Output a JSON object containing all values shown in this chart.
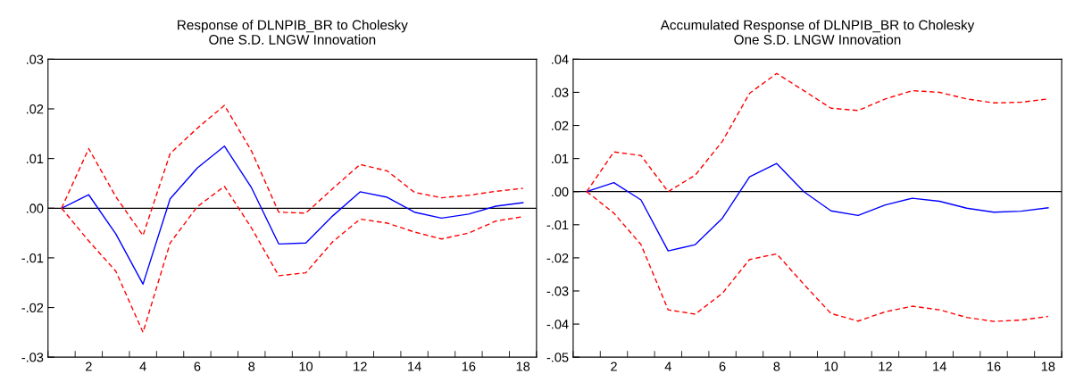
{
  "chart_data": [
    {
      "type": "line",
      "title": "Response of DLNPIB_BR to Cholesky\nOne S.D. LNGW Innovation",
      "categories": [
        null,
        "2",
        null,
        "4",
        null,
        "6",
        null,
        "8",
        null,
        "10",
        null,
        "12",
        null,
        "14",
        null,
        "16",
        null,
        "18"
      ],
      "ylim": [
        -0.03,
        0.03
      ],
      "yticks": [
        {
          "value": -0.03,
          "label": "-.03"
        },
        {
          "value": -0.02,
          "label": "-.02"
        },
        {
          "value": -0.01,
          "label": "-.01"
        },
        {
          "value": 0,
          "label": ".00"
        },
        {
          "value": 0.01,
          "label": ".01"
        },
        {
          "value": 0.02,
          "label": ".02"
        },
        {
          "value": 0.03,
          "label": ".03"
        }
      ],
      "grid": false,
      "ref_lines": [
        {
          "axis": "y",
          "value": 0,
          "color": "#000000",
          "line_style": "solid"
        }
      ],
      "series": [
        {
          "color": "#0000ff",
          "line_style": "solid",
          "values": [
            0,
            0.0027,
            -0.0052,
            -0.0153,
            0.0019,
            0.0081,
            0.0125,
            0.0041,
            -0.0072,
            -0.007,
            -0.0015,
            0.0033,
            0.0022,
            -0.0008,
            -0.002,
            -0.0012,
            0.0004,
            0.0011
          ]
        },
        {
          "color": "#ff0000",
          "line_style": "dashed",
          "values": [
            0,
            0.012,
            0.0023,
            -0.0055,
            0.011,
            0.0161,
            0.0207,
            0.0115,
            -0.0008,
            -0.001,
            0.004,
            0.0088,
            0.0075,
            0.0032,
            0.0021,
            0.0026,
            0.0034,
            0.004
          ]
        },
        {
          "color": "#ff0000",
          "line_style": "dashed",
          "values": [
            0,
            -0.0066,
            -0.0127,
            -0.025,
            -0.007,
            0.0003,
            0.0044,
            -0.004,
            -0.0136,
            -0.013,
            -0.0067,
            -0.0022,
            -0.003,
            -0.0048,
            -0.0062,
            -0.005,
            -0.0026,
            -0.0017
          ]
        }
      ]
    },
    {
      "type": "line",
      "title": "Accumulated Response of DLNPIB_BR to Cholesky\nOne S.D. LNGW Innovation",
      "categories": [
        null,
        "2",
        null,
        "4",
        null,
        "6",
        null,
        "8",
        null,
        "10",
        null,
        "12",
        null,
        "14",
        null,
        "16",
        null,
        "18"
      ],
      "ylim": [
        -0.05,
        0.04
      ],
      "yticks": [
        {
          "value": -0.05,
          "label": "-.05"
        },
        {
          "value": -0.04,
          "label": "-.04"
        },
        {
          "value": -0.03,
          "label": "-.03"
        },
        {
          "value": -0.02,
          "label": "-.02"
        },
        {
          "value": -0.01,
          "label": "-.01"
        },
        {
          "value": 0,
          "label": ".00"
        },
        {
          "value": 0.01,
          "label": ".01"
        },
        {
          "value": 0.02,
          "label": ".02"
        },
        {
          "value": 0.03,
          "label": ".03"
        },
        {
          "value": 0.04,
          "label": ".04"
        }
      ],
      "grid": false,
      "ref_lines": [
        {
          "axis": "y",
          "value": 0,
          "color": "#000000",
          "line_style": "solid"
        }
      ],
      "series": [
        {
          "color": "#0000ff",
          "line_style": "solid",
          "values": [
            0,
            0.0027,
            -0.0025,
            -0.0179,
            -0.016,
            -0.008,
            0.0045,
            0.0085,
            0.0,
            -0.0058,
            -0.0072,
            -0.004,
            -0.002,
            -0.0029,
            -0.005,
            -0.0062,
            -0.0059,
            -0.0049
          ]
        },
        {
          "color": "#ff0000",
          "line_style": "dashed",
          "values": [
            0,
            0.012,
            0.0109,
            0.0,
            0.005,
            0.0152,
            0.0297,
            0.0357,
            0.0305,
            0.0252,
            0.0245,
            0.028,
            0.0305,
            0.03,
            0.028,
            0.0268,
            0.027,
            0.028
          ]
        },
        {
          "color": "#ff0000",
          "line_style": "dashed",
          "values": [
            0,
            -0.0065,
            -0.016,
            -0.0357,
            -0.037,
            -0.0307,
            -0.0205,
            -0.0188,
            -0.028,
            -0.0368,
            -0.0391,
            -0.0363,
            -0.0346,
            -0.0357,
            -0.038,
            -0.0392,
            -0.0388,
            -0.0377
          ]
        }
      ]
    }
  ]
}
